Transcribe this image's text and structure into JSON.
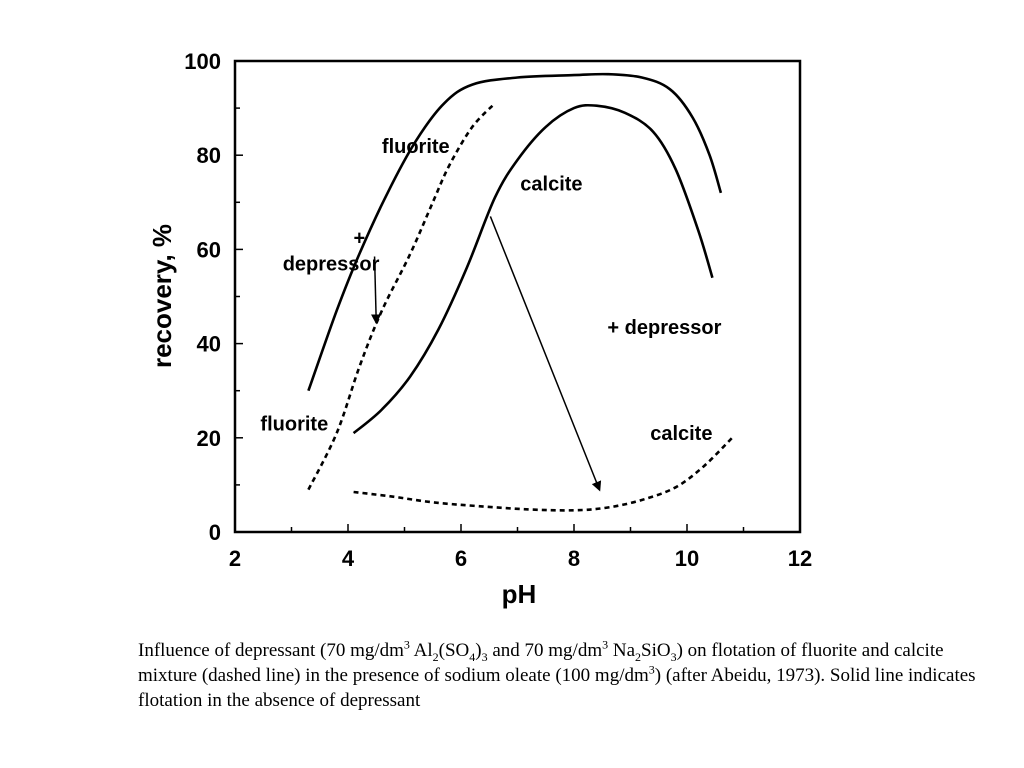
{
  "chart_data": {
    "type": "line",
    "xlabel": "pH",
    "ylabel": "recovery, %",
    "xlim": [
      2,
      12
    ],
    "ylim": [
      0,
      100
    ],
    "xticks": [
      2,
      4,
      6,
      8,
      10,
      12
    ],
    "yticks": [
      0,
      20,
      40,
      60,
      80,
      100
    ],
    "grid": false,
    "series": [
      {
        "name": "fluorite",
        "style": "solid",
        "points": [
          [
            3.3,
            30
          ],
          [
            3.8,
            47
          ],
          [
            4.2,
            59
          ],
          [
            4.7,
            72
          ],
          [
            5.2,
            83
          ],
          [
            5.7,
            91
          ],
          [
            6.2,
            95
          ],
          [
            7.0,
            96.5
          ],
          [
            8.0,
            97
          ],
          [
            8.6,
            97.2
          ],
          [
            9.2,
            96.5
          ],
          [
            9.7,
            94
          ],
          [
            10.1,
            88
          ],
          [
            10.4,
            80
          ],
          [
            10.6,
            72
          ]
        ]
      },
      {
        "name": "calcite",
        "style": "solid",
        "points": [
          [
            4.1,
            21
          ],
          [
            4.6,
            26
          ],
          [
            5.1,
            33
          ],
          [
            5.6,
            43
          ],
          [
            6.1,
            56
          ],
          [
            6.6,
            71
          ],
          [
            7.0,
            79
          ],
          [
            7.5,
            86
          ],
          [
            8.0,
            90
          ],
          [
            8.4,
            90.5
          ],
          [
            8.9,
            89
          ],
          [
            9.4,
            85
          ],
          [
            9.8,
            77
          ],
          [
            10.2,
            64
          ],
          [
            10.45,
            54
          ]
        ]
      },
      {
        "name": "fluorite",
        "style": "dashed",
        "points": [
          [
            3.3,
            9
          ],
          [
            3.8,
            21
          ],
          [
            4.2,
            35
          ],
          [
            4.6,
            47
          ],
          [
            5.1,
            59
          ],
          [
            5.5,
            70
          ],
          [
            5.8,
            78
          ],
          [
            6.2,
            86
          ],
          [
            6.6,
            91
          ]
        ]
      },
      {
        "name": "calcite",
        "style": "dashed",
        "points": [
          [
            4.1,
            8.5
          ],
          [
            4.8,
            7.5
          ],
          [
            5.5,
            6.3
          ],
          [
            6.3,
            5.5
          ],
          [
            7.2,
            4.8
          ],
          [
            8.0,
            4.6
          ],
          [
            8.6,
            5.2
          ],
          [
            9.2,
            6.8
          ],
          [
            9.8,
            9.5
          ],
          [
            10.3,
            14
          ],
          [
            10.8,
            20
          ]
        ]
      }
    ],
    "annotations": [
      {
        "id": "fluorite_solid",
        "text": "fluorite",
        "x": 5.2,
        "y": 80.5
      },
      {
        "id": "calcite_solid",
        "text": "calcite",
        "x": 7.6,
        "y": 72.5
      },
      {
        "id": "plus_left",
        "text": "+",
        "x": 4.2,
        "y": 61
      },
      {
        "id": "depressor_left",
        "text": "depressor",
        "x": 3.7,
        "y": 55.5
      },
      {
        "id": "depressor_right",
        "text": "+ depressor",
        "x": 9.6,
        "y": 42
      },
      {
        "id": "fluorite_dashed",
        "text": "fluorite",
        "x": 3.05,
        "y": 21.5
      },
      {
        "id": "calcite_dashed",
        "text": "calcite",
        "x": 9.9,
        "y": 19.5
      }
    ],
    "arrows": [
      {
        "from": [
          4.47,
          58.5
        ],
        "to": [
          4.5,
          44.5
        ]
      },
      {
        "from": [
          6.52,
          67
        ],
        "to": [
          8.45,
          9
        ]
      }
    ]
  },
  "caption": {
    "text_1": "Influence of depressant  (70 mg/dm",
    "sup_1": "3",
    "text_2": " Al",
    "sub_1": "2",
    "text_3": "(SO",
    "sub_2": "4",
    "text_4": ")",
    "sub_3": "3",
    "text_5": " and 70 mg/dm",
    "sup_2": "3",
    "text_6": " Na",
    "sub_4": "2",
    "text_7": "SiO",
    "sub_5": "3",
    "text_8": ") on flotation of fluorite and calcite mixture  (dashed line) in the presence of sodium oleate (100 mg/dm",
    "sup_3": "3",
    "text_9": ") (after Abeidu, 1973). Solid line indicates flotation in the absence of depressant"
  }
}
